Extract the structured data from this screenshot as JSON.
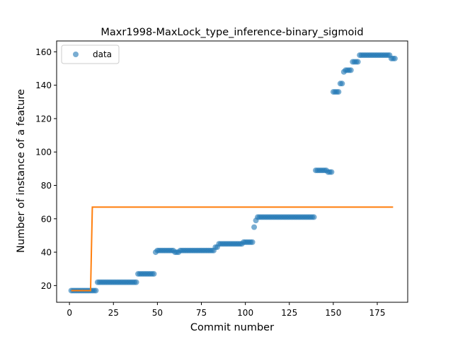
{
  "chart_data": {
    "type": "scatter",
    "title": "Maxr1998-MaxLock_type_inference-binary_sigmoid",
    "xlabel": "Commit number",
    "ylabel": "Number of instance of a feature",
    "xlim": [
      -7.3,
      192.3
    ],
    "ylim": [
      10.0,
      166.5
    ],
    "x_ticks": [
      0,
      25,
      50,
      75,
      100,
      125,
      150,
      175
    ],
    "y_ticks": [
      20,
      40,
      60,
      80,
      100,
      120,
      140,
      160
    ],
    "grid": false,
    "legend": {
      "position": "top-left",
      "entries": [
        "data"
      ]
    },
    "series": [
      {
        "name": "data",
        "kind": "scatter",
        "color": "#1f77b4",
        "runs": [
          {
            "x_start": 1,
            "x_end": 15,
            "y": 17
          },
          {
            "x_start": 16,
            "x_end": 38,
            "y": 22
          },
          {
            "x_start": 39,
            "x_end": 48,
            "y": 27
          },
          {
            "x_start": 49,
            "x_end": 49,
            "y": 40
          },
          {
            "x_start": 50,
            "x_end": 59,
            "y": 41
          },
          {
            "x_start": 60,
            "x_end": 62,
            "y": 40
          },
          {
            "x_start": 63,
            "x_end": 82,
            "y": 41
          },
          {
            "x_start": 83,
            "x_end": 84,
            "y": 43
          },
          {
            "x_start": 85,
            "x_end": 98,
            "y": 45
          },
          {
            "x_start": 99,
            "x_end": 104,
            "y": 46
          },
          {
            "x_start": 105,
            "x_end": 105,
            "y": 55
          },
          {
            "x_start": 106,
            "x_end": 106,
            "y": 59
          },
          {
            "x_start": 107,
            "x_end": 139,
            "y": 61
          },
          {
            "x_start": 140,
            "x_end": 146,
            "y": 89
          },
          {
            "x_start": 147,
            "x_end": 149,
            "y": 88
          },
          {
            "x_start": 150,
            "x_end": 153,
            "y": 136
          },
          {
            "x_start": 154,
            "x_end": 155,
            "y": 141
          },
          {
            "x_start": 156,
            "x_end": 156,
            "y": 148
          },
          {
            "x_start": 157,
            "x_end": 160,
            "y": 149
          },
          {
            "x_start": 161,
            "x_end": 164,
            "y": 154
          },
          {
            "x_start": 165,
            "x_end": 182,
            "y": 158
          },
          {
            "x_start": 183,
            "x_end": 185,
            "y": 156
          }
        ]
      },
      {
        "kind": "line",
        "color": "#ff7f0e",
        "x": [
          1,
          12,
          13,
          184
        ],
        "y": [
          17,
          17,
          67,
          67
        ]
      }
    ]
  }
}
